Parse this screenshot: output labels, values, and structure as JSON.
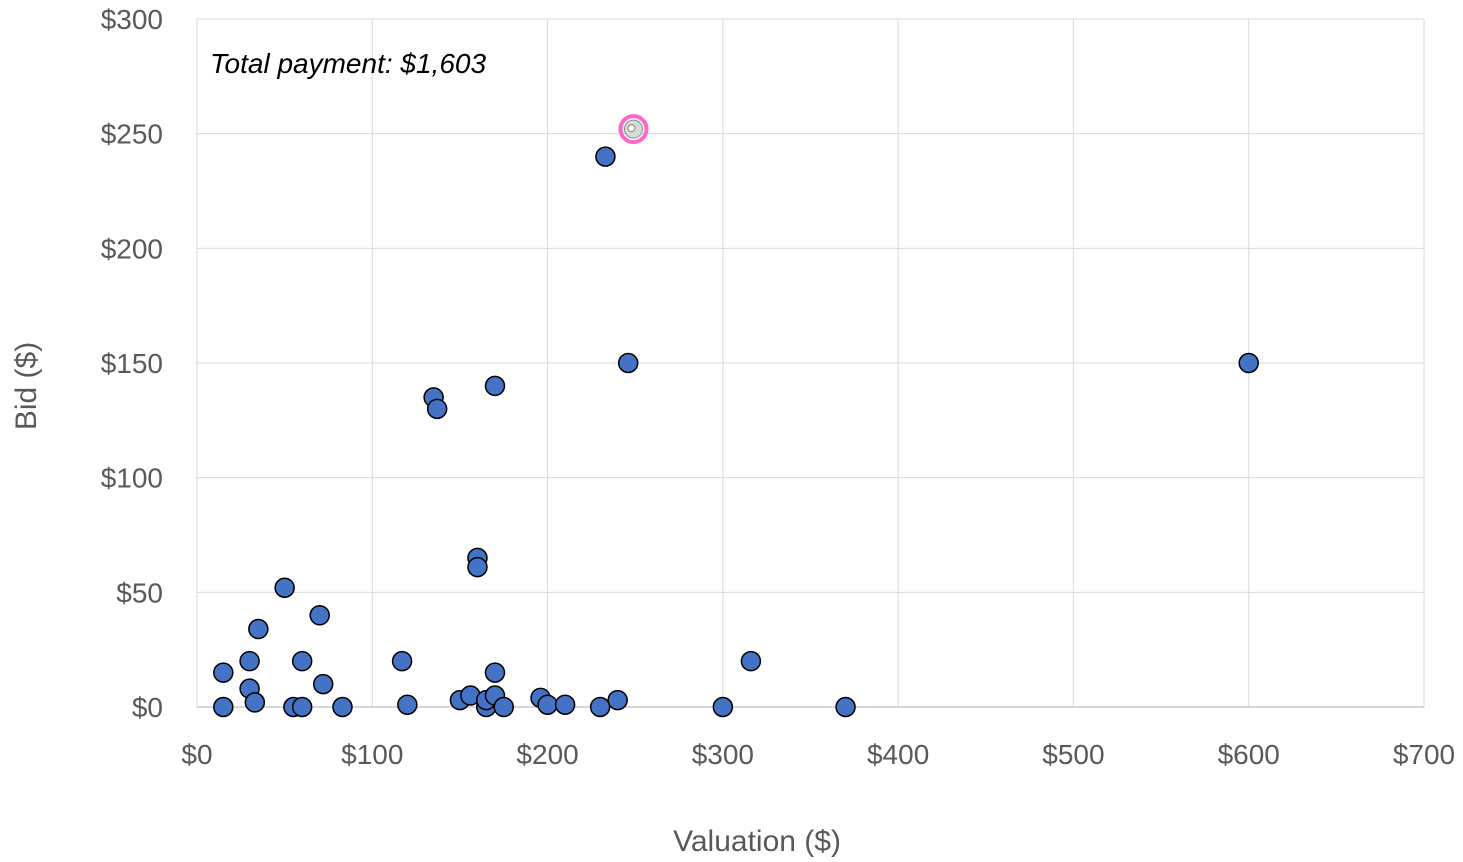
{
  "chart_data": {
    "type": "scatter",
    "title": "",
    "xlabel": "Valuation ($)",
    "ylabel": "Bid ($)",
    "xlim": [
      0,
      700
    ],
    "ylim": [
      0,
      300
    ],
    "x_ticks": [
      "$0",
      "$100",
      "$200",
      "$300",
      "$400",
      "$500",
      "$600",
      "$700"
    ],
    "y_ticks": [
      "$0",
      "$50",
      "$100",
      "$150",
      "$200",
      "$250",
      "$300"
    ],
    "x_tick_values": [
      0,
      100,
      200,
      300,
      400,
      500,
      600,
      700
    ],
    "y_tick_values": [
      0,
      50,
      100,
      150,
      200,
      250,
      300
    ],
    "grid": true,
    "annotation": "Total payment: $1,603",
    "colors": {
      "point_fill": "#4472C4",
      "point_stroke": "#000000",
      "highlight_ring": "#FF66CC",
      "highlight_fill": "#D9D9D9"
    },
    "points": [
      {
        "x": 15,
        "y": 15
      },
      {
        "x": 15,
        "y": 0
      },
      {
        "x": 30,
        "y": 20
      },
      {
        "x": 30,
        "y": 8
      },
      {
        "x": 33,
        "y": 2
      },
      {
        "x": 35,
        "y": 34
      },
      {
        "x": 50,
        "y": 52
      },
      {
        "x": 55,
        "y": 0
      },
      {
        "x": 60,
        "y": 20
      },
      {
        "x": 60,
        "y": 0
      },
      {
        "x": 70,
        "y": 40
      },
      {
        "x": 72,
        "y": 10
      },
      {
        "x": 83,
        "y": 0
      },
      {
        "x": 117,
        "y": 20
      },
      {
        "x": 120,
        "y": 1
      },
      {
        "x": 135,
        "y": 135
      },
      {
        "x": 137,
        "y": 130
      },
      {
        "x": 150,
        "y": 3
      },
      {
        "x": 156,
        "y": 5
      },
      {
        "x": 160,
        "y": 65
      },
      {
        "x": 160,
        "y": 61
      },
      {
        "x": 165,
        "y": 0
      },
      {
        "x": 165,
        "y": 3
      },
      {
        "x": 170,
        "y": 140
      },
      {
        "x": 170,
        "y": 15
      },
      {
        "x": 170,
        "y": 5
      },
      {
        "x": 175,
        "y": 0
      },
      {
        "x": 196,
        "y": 4
      },
      {
        "x": 200,
        "y": 1
      },
      {
        "x": 210,
        "y": 1
      },
      {
        "x": 230,
        "y": 0
      },
      {
        "x": 233,
        "y": 240
      },
      {
        "x": 240,
        "y": 3
      },
      {
        "x": 246,
        "y": 150
      },
      {
        "x": 300,
        "y": 0
      },
      {
        "x": 316,
        "y": 20
      },
      {
        "x": 370,
        "y": 0
      },
      {
        "x": 600,
        "y": 150
      }
    ],
    "highlight_point": {
      "x": 249,
      "y": 252
    }
  }
}
